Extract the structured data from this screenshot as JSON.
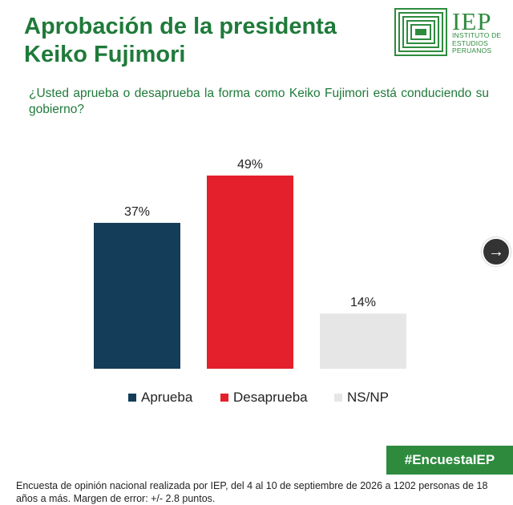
{
  "header": {
    "title": "Aprobación de la presidenta Keiko Fujimori",
    "question": "¿Usted aprueba o desaprueba la forma como Keiko Fujimori está conduciendo su gobierno?"
  },
  "logo": {
    "name": "IEP",
    "subtitle": "INSTITUTO DE ESTUDIOS PERUANOS",
    "color": "#2e8b3e"
  },
  "chart_data": {
    "type": "bar",
    "categories": [
      "Aprueba",
      "Desaprueba",
      "NS/NP"
    ],
    "values": [
      37,
      49,
      14
    ],
    "value_labels": [
      "37%",
      "49%",
      "14%"
    ],
    "colors": [
      "#143d59",
      "#e3202b",
      "#e6e6e6"
    ],
    "ylim": [
      0,
      49
    ],
    "grid": false,
    "legend": "bottom"
  },
  "legend": {
    "items": [
      {
        "label": "Aprueba",
        "color": "#143d59"
      },
      {
        "label": "Desaprueba",
        "color": "#e3202b"
      },
      {
        "label": "NS/NP",
        "color": "#e6e6e6"
      }
    ]
  },
  "nav": {
    "next_icon": "arrow-right-icon"
  },
  "badge": {
    "hashtag": "#EncuestaIEP"
  },
  "footer": {
    "note": "Encuesta de opinión nacional realizada por IEP, del 4 al 10 de septiembre de 2026 a 1202 personas de 18 años a más. Margen de error: +/- 2.8 puntos."
  }
}
